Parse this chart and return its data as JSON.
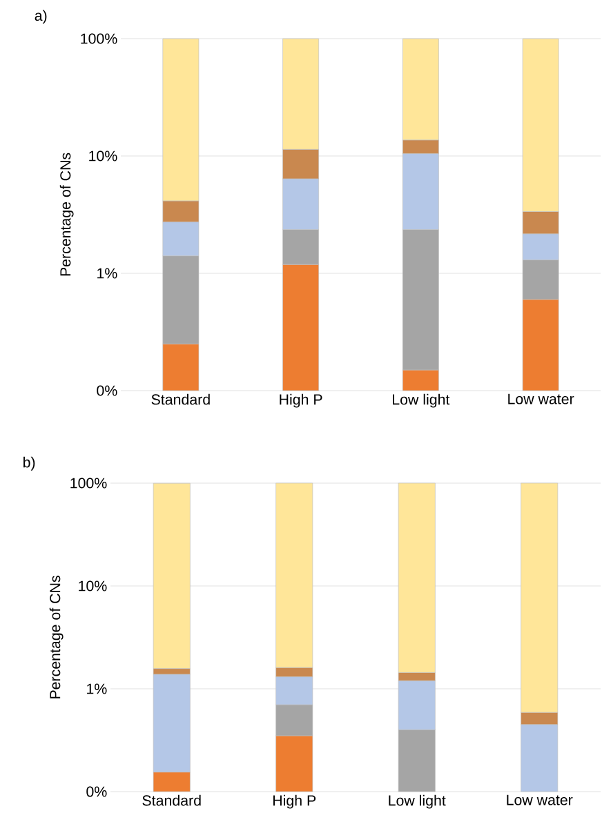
{
  "chart_data": [
    {
      "type": "bar",
      "title": "a)",
      "ylabel": "Percentage of CNs",
      "stacked": true,
      "log": "y",
      "grid": "y",
      "categories": [
        "Standard",
        "High P",
        "Low light",
        "Low water"
      ],
      "ylim": [
        0.1,
        100
      ],
      "yticks": [
        {
          "value": 0.1,
          "label": "0%"
        },
        {
          "value": 1,
          "label": "1%"
        },
        {
          "value": 10,
          "label": "10%"
        },
        {
          "value": 100,
          "label": "100%"
        }
      ],
      "series": [
        {
          "color": "#ed7d31",
          "values": [
            0.25,
            1.19,
            0.15,
            0.6
          ]
        },
        {
          "color": "#a5a5a5",
          "values": [
            1.16,
            1.17,
            2.21,
            0.7
          ]
        },
        {
          "color": "#b4c7e7",
          "values": [
            1.33,
            4.04,
            8.14,
            0.87
          ]
        },
        {
          "color": "#c9884f",
          "values": [
            1.41,
            5.0,
            3.2,
            1.19
          ]
        },
        {
          "color": "#ffe699",
          "values": [
            95.85,
            88.6,
            86.3,
            96.64
          ]
        }
      ]
    },
    {
      "type": "bar",
      "title": "b)",
      "ylabel": "Percentage of CNs",
      "stacked": true,
      "log": "y",
      "grid": "y",
      "categories": [
        "Standard",
        "High P",
        "Low light",
        "Low water"
      ],
      "ylim": [
        0.1,
        100
      ],
      "yticks": [
        {
          "value": 0.1,
          "label": "0%"
        },
        {
          "value": 1,
          "label": "1%"
        },
        {
          "value": 10,
          "label": "10%"
        },
        {
          "value": 100,
          "label": "100%"
        }
      ],
      "series": [
        {
          "color": "#ed7d31",
          "values": [
            0.155,
            0.35,
            null,
            null
          ]
        },
        {
          "color": "#a5a5a5",
          "values": [
            null,
            0.35,
            0.4,
            null
          ]
        },
        {
          "color": "#b4c7e7",
          "values": [
            1.23,
            0.61,
            0.8,
            0.45
          ]
        },
        {
          "color": "#c9884f",
          "values": [
            0.19,
            0.3,
            0.24,
            0.14
          ]
        },
        {
          "color": "#ffe699",
          "values": [
            98.07,
            98.39,
            98.56,
            99.41
          ]
        }
      ]
    }
  ]
}
